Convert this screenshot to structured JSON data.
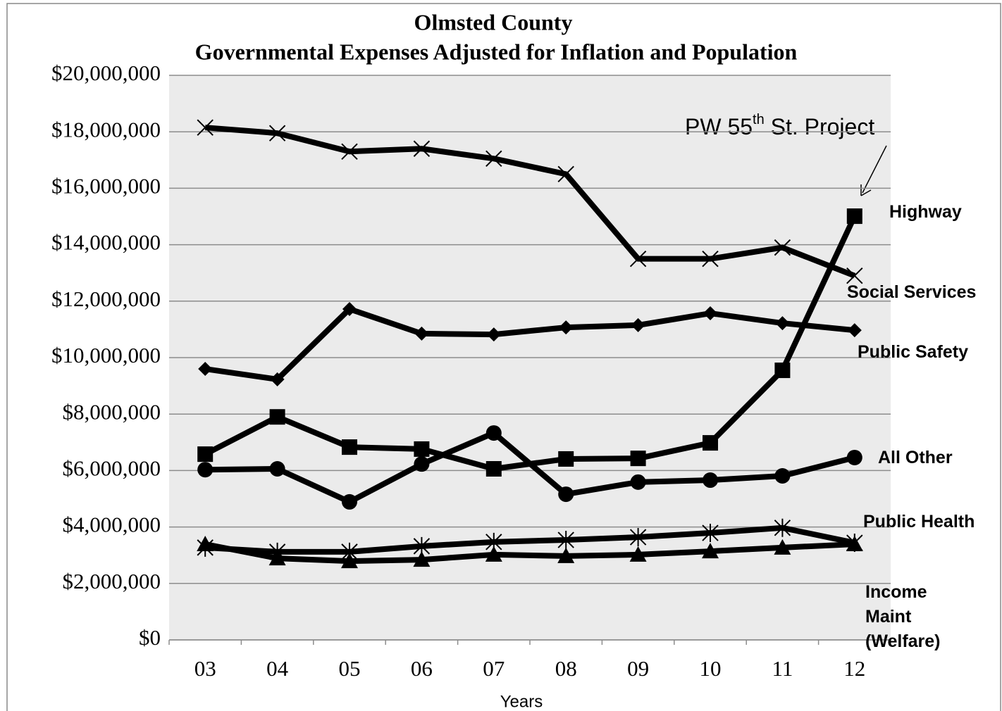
{
  "chart_data": {
    "type": "line",
    "title": [
      "Olmsted County",
      "Governmental Expenses Adjusted for Inflation and Population"
    ],
    "x_label": "Years",
    "annotation": [
      "PW 55",
      "th",
      " St. Project"
    ],
    "categories": [
      "03",
      "04",
      "05",
      "06",
      "07",
      "08",
      "09",
      "10",
      "11",
      "12"
    ],
    "ylim": [
      0,
      20000000
    ],
    "yticks": [
      {
        "value": 0,
        "label": "$0"
      },
      {
        "value": 2000000,
        "label": "$2,000,000"
      },
      {
        "value": 4000000,
        "label": "$4,000,000"
      },
      {
        "value": 6000000,
        "label": "$6,000,000"
      },
      {
        "value": 8000000,
        "label": "$8,000,000"
      },
      {
        "value": 10000000,
        "label": "$10,000,000"
      },
      {
        "value": 12000000,
        "label": "$12,000,000"
      },
      {
        "value": 14000000,
        "label": "$14,000,000"
      },
      {
        "value": 16000000,
        "label": "$16,000,000"
      },
      {
        "value": 18000000,
        "label": "$18,000,000"
      },
      {
        "value": 20000000,
        "label": "$20,000,000"
      }
    ],
    "grid": true,
    "series": [
      {
        "name": "Highway",
        "color": "#000000",
        "marker": "square",
        "values": [
          6580000,
          7900000,
          6830000,
          6760000,
          6060000,
          6410000,
          6430000,
          6980000,
          9550000,
          15010000
        ]
      },
      {
        "name": "Social Services",
        "color": "#000000",
        "marker": "x",
        "values": [
          18150000,
          17950000,
          17300000,
          17400000,
          17050000,
          16500000,
          13500000,
          13500000,
          13900000,
          12900000
        ]
      },
      {
        "name": "Public Safety",
        "color": "#000000",
        "marker": "diamond",
        "values": [
          9600000,
          9230000,
          11720000,
          10850000,
          10820000,
          11070000,
          11150000,
          11570000,
          11220000,
          10970000
        ]
      },
      {
        "name": "All Other",
        "color": "#000000",
        "marker": "circle",
        "values": [
          6030000,
          6060000,
          4890000,
          6230000,
          7330000,
          5160000,
          5590000,
          5660000,
          5810000,
          6460000
        ]
      },
      {
        "name": "Public Health",
        "color": "#000000",
        "marker": "asterisk",
        "values": [
          3270000,
          3120000,
          3120000,
          3320000,
          3470000,
          3540000,
          3640000,
          3790000,
          3970000,
          3440000
        ]
      },
      {
        "name": "Income Maint (Welfare)",
        "color": "#000000",
        "marker": "triangle",
        "values": [
          3390000,
          2890000,
          2790000,
          2840000,
          3020000,
          2970000,
          3020000,
          3140000,
          3270000,
          3390000
        ]
      }
    ]
  }
}
